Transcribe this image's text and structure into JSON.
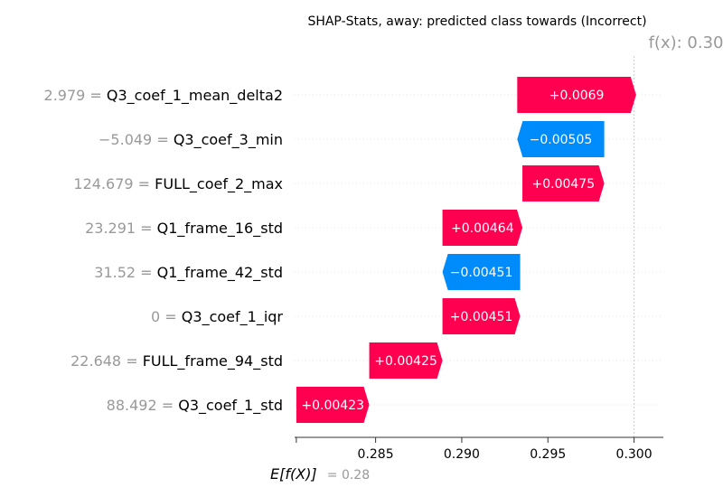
{
  "chart_data": {
    "type": "waterfall",
    "title": "SHAP-Stats, away: predicted class towards (Incorrect)",
    "fx_label": "f(x): 0.30",
    "fx_value": 0.3,
    "base_label": "E[f(X)]",
    "base_value_text": "= 0.28",
    "base_value": 0.2804,
    "xlim": [
      0.2803,
      0.3017
    ],
    "x_ticks": [
      0.285,
      0.29,
      0.295,
      0.3
    ],
    "x_tick_labels": [
      "0.285",
      "0.290",
      "0.295",
      "0.300"
    ],
    "colors": {
      "positive": "#ff0051",
      "negative": "#008bfb",
      "feature_value": "#999999",
      "grid": "#cccccc"
    },
    "features": [
      {
        "value": "2.979 =",
        "name": "Q3_coef_1_mean_delta2",
        "shap": 0.0069,
        "label": "+0.0069"
      },
      {
        "value": "−5.049 =",
        "name": "Q3_coef_3_min",
        "shap": -0.00505,
        "label": "−0.00505"
      },
      {
        "value": "124.679 =",
        "name": "FULL_coef_2_max",
        "shap": 0.00475,
        "label": "+0.00475"
      },
      {
        "value": "23.291 =",
        "name": "Q1_frame_16_std",
        "shap": 0.00464,
        "label": "+0.00464"
      },
      {
        "value": "31.52 =",
        "name": "Q1_frame_42_std",
        "shap": -0.00451,
        "label": "−0.00451"
      },
      {
        "value": "0 =",
        "name": "Q3_coef_1_iqr",
        "shap": 0.00451,
        "label": "+0.00451"
      },
      {
        "value": "22.648 =",
        "name": "FULL_frame_94_std",
        "shap": 0.00425,
        "label": "+0.00425"
      },
      {
        "value": "88.492 =",
        "name": "Q3_coef_1_std",
        "shap": 0.00423,
        "label": "+0.00423"
      }
    ]
  }
}
